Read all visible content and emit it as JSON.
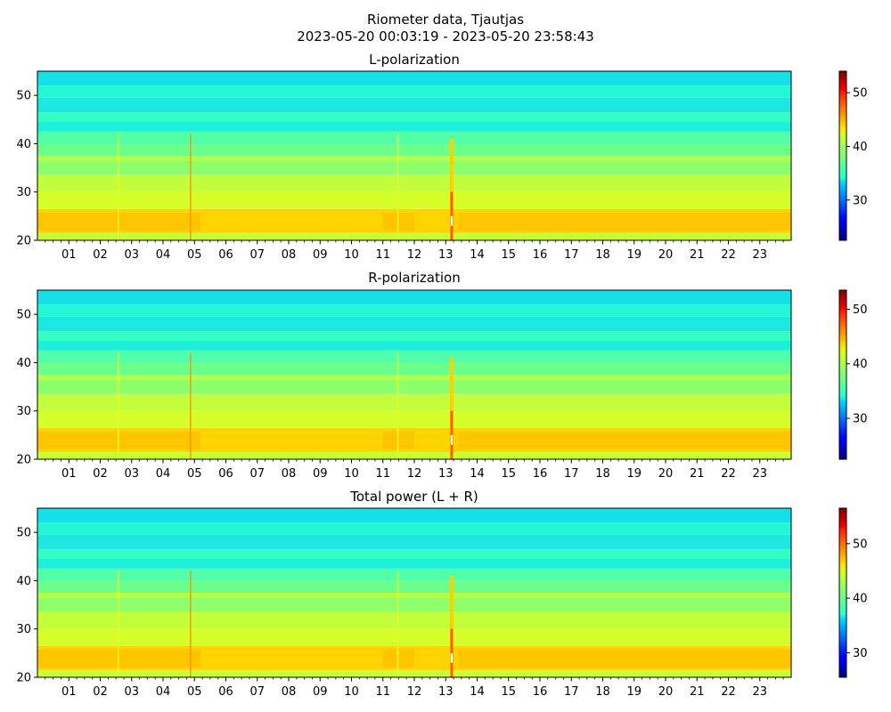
{
  "figure": {
    "title_line1": "Riometer data, Tjautjas",
    "title_line2": "2023-05-20 00:03:19 - 2023-05-20 23:58:43"
  },
  "chart_data": [
    {
      "type": "heatmap",
      "title": "L-polarization",
      "xlabel": "",
      "ylabel": "",
      "xlim": [
        0,
        24
      ],
      "ylim": [
        20,
        55
      ],
      "x_tick_labels": [
        "01",
        "02",
        "03",
        "04",
        "05",
        "06",
        "07",
        "08",
        "09",
        "10",
        "11",
        "12",
        "13",
        "14",
        "15",
        "16",
        "17",
        "18",
        "19",
        "20",
        "21",
        "22",
        "23"
      ],
      "y_ticks": [
        20,
        30,
        40,
        50
      ],
      "colorbar": {
        "range": [
          22.5,
          54
        ],
        "ticks": [
          30,
          40,
          50
        ],
        "colormap": "jet"
      }
    },
    {
      "type": "heatmap",
      "title": "R-polarization",
      "xlabel": "",
      "ylabel": "",
      "xlim": [
        0,
        24
      ],
      "ylim": [
        20,
        55
      ],
      "x_tick_labels": [
        "01",
        "02",
        "03",
        "04",
        "05",
        "06",
        "07",
        "08",
        "09",
        "10",
        "11",
        "12",
        "13",
        "14",
        "15",
        "16",
        "17",
        "18",
        "19",
        "20",
        "21",
        "22",
        "23"
      ],
      "y_ticks": [
        20,
        30,
        40,
        50
      ],
      "colorbar": {
        "range": [
          22.5,
          53.5
        ],
        "ticks": [
          30,
          40,
          50
        ],
        "colormap": "jet"
      }
    },
    {
      "type": "heatmap",
      "title": "Total power (L + R)",
      "xlabel": "",
      "ylabel": "",
      "xlim": [
        0,
        24
      ],
      "ylim": [
        20,
        55
      ],
      "x_tick_labels": [
        "01",
        "02",
        "03",
        "04",
        "05",
        "06",
        "07",
        "08",
        "09",
        "10",
        "11",
        "12",
        "13",
        "14",
        "15",
        "16",
        "17",
        "18",
        "19",
        "20",
        "21",
        "22",
        "23"
      ],
      "y_ticks": [
        20,
        30,
        40,
        50
      ],
      "colorbar": {
        "range": [
          25.5,
          56.5
        ],
        "ticks": [
          30,
          40,
          50
        ],
        "colormap": "jet"
      }
    }
  ]
}
